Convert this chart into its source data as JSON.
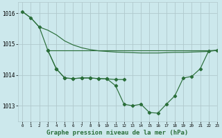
{
  "title": "Graphe pression niveau de la mer (hPa)",
  "bg_color": "#cce8ec",
  "grid_color": "#b0c8cc",
  "line_color": "#2a6e3a",
  "xlim": [
    -0.5,
    23
  ],
  "ylim": [
    1012.5,
    1016.35
  ],
  "yticks": [
    1013,
    1014,
    1015,
    1016
  ],
  "xticks": [
    0,
    1,
    2,
    3,
    4,
    5,
    6,
    7,
    8,
    9,
    10,
    11,
    12,
    13,
    14,
    15,
    16,
    17,
    18,
    19,
    20,
    21,
    22,
    23
  ],
  "series": {
    "curve_top_x": [
      0,
      1,
      2,
      3,
      4,
      5,
      6,
      7,
      8,
      9,
      10,
      11,
      12,
      13,
      14,
      15,
      16,
      17,
      18,
      19,
      20,
      21,
      22,
      23
    ],
    "curve_top_y": [
      1016.05,
      1015.85,
      1015.55,
      1015.45,
      1015.3,
      1015.1,
      1014.97,
      1014.88,
      1014.82,
      1014.78,
      1014.76,
      1014.74,
      1014.73,
      1014.72,
      1014.71,
      1014.71,
      1014.71,
      1014.72,
      1014.73,
      1014.73,
      1014.74,
      1014.75,
      1014.76,
      1014.8
    ],
    "curve_mid_x": [
      0,
      1,
      2,
      3,
      4,
      5,
      6,
      7,
      8,
      9,
      10,
      11,
      12
    ],
    "curve_mid_y": [
      1016.05,
      1015.85,
      1015.55,
      1014.8,
      1014.2,
      1013.9,
      1013.88,
      1013.9,
      1013.9,
      1013.88,
      1013.87,
      1013.85,
      1013.85
    ],
    "curve_main_x": [
      3,
      4,
      5,
      6,
      7,
      8,
      9,
      10,
      11,
      12,
      13,
      14,
      15,
      16,
      17,
      18,
      19,
      20,
      21,
      22,
      23
    ],
    "curve_main_y": [
      1014.8,
      1014.2,
      1013.9,
      1013.88,
      1013.9,
      1013.9,
      1013.88,
      1013.87,
      1013.65,
      1013.05,
      1013.0,
      1013.05,
      1012.78,
      1012.76,
      1013.05,
      1013.32,
      1013.9,
      1013.95,
      1014.2,
      1014.78,
      1014.8
    ],
    "hline_x": [
      3,
      23
    ],
    "hline_y": [
      1014.8,
      1014.8
    ]
  }
}
